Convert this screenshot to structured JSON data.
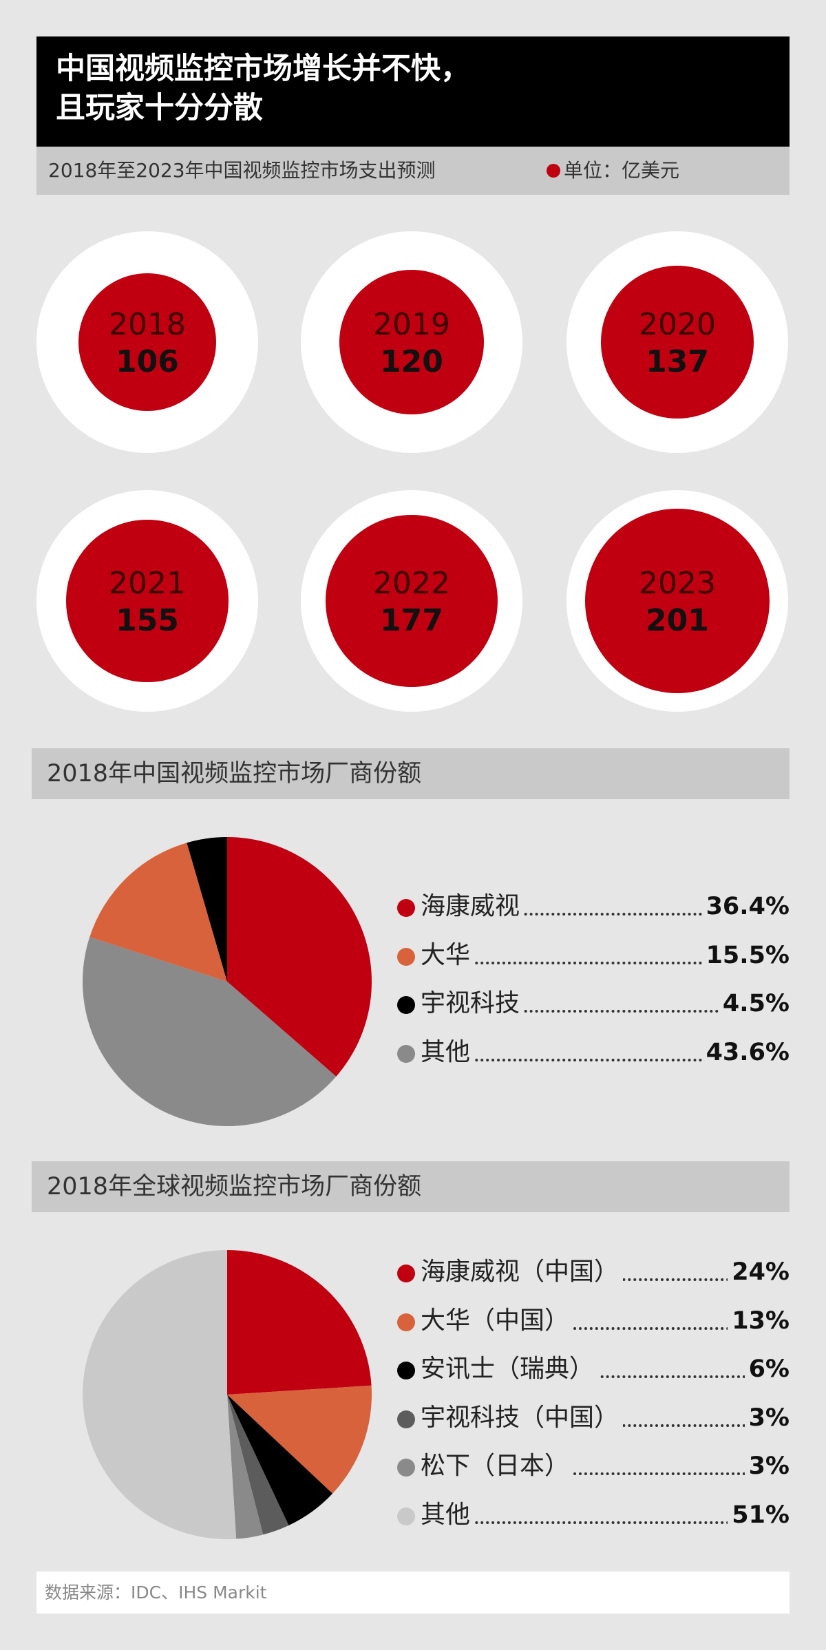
{
  "header": {
    "title_line1": "中国视频监控市场增长并不快，",
    "title_line2": "且玩家十分分散",
    "subtitle": "2018年至2023年中国视频监控市场支出预测",
    "unit_label": "单位：亿美元"
  },
  "colors": {
    "red": "#c00010",
    "orange": "#d8623c",
    "black": "#000000",
    "dark_gray": "#5c5c5c",
    "gray": "#8a8a8a",
    "light_gray": "#c8c9c8"
  },
  "chart_data": [
    {
      "type": "bubble",
      "title": "2018年至2023年中国视频监控市场支出预测",
      "unit": "单位：亿美元",
      "categories": [
        "2018",
        "2019",
        "2020",
        "2021",
        "2022",
        "2023"
      ],
      "values": [
        106,
        120,
        137,
        155,
        177,
        201
      ]
    },
    {
      "type": "pie",
      "title": "2018年中国视频监控市场厂商份额",
      "slices": [
        {
          "label": "海康威视",
          "value": 36.4,
          "value_label": "36.4%",
          "color": "#c00010"
        },
        {
          "label": "大华",
          "value": 15.5,
          "value_label": "15.5%",
          "color": "#d8623c"
        },
        {
          "label": "宇视科技",
          "value": 4.5,
          "value_label": "4.5%",
          "color": "#000000"
        },
        {
          "label": "其他",
          "value": 43.6,
          "value_label": "43.6%",
          "color": "#8a8a8a"
        }
      ],
      "pie_order": [
        "海康威视",
        "其他",
        "大华",
        "宇视科技"
      ]
    },
    {
      "type": "pie",
      "title": "2018年全球视频监控市场厂商份额",
      "slices": [
        {
          "label": "海康威视（中国）",
          "value": 24,
          "value_label": "24%",
          "color": "#c00010"
        },
        {
          "label": "大华（中国）",
          "value": 13,
          "value_label": "13%",
          "color": "#d8623c"
        },
        {
          "label": "安讯士（瑞典）",
          "value": 6,
          "value_label": "6%",
          "color": "#000000"
        },
        {
          "label": "宇视科技（中国）",
          "value": 3,
          "value_label": "3%",
          "color": "#5c5c5c"
        },
        {
          "label": "松下（日本）",
          "value": 3,
          "value_label": "3%",
          "color": "#8a8a8a"
        },
        {
          "label": "其他",
          "value": 51,
          "value_label": "51%",
          "color": "#c8c9c8"
        }
      ],
      "pie_order": [
        "海康威视（中国）",
        "大华（中国）",
        "安讯士（瑞典）",
        "宇视科技（中国）",
        "松下（日本）",
        "其他"
      ]
    }
  ],
  "footer": {
    "source": "数据来源：IDC、IHS Markit"
  }
}
